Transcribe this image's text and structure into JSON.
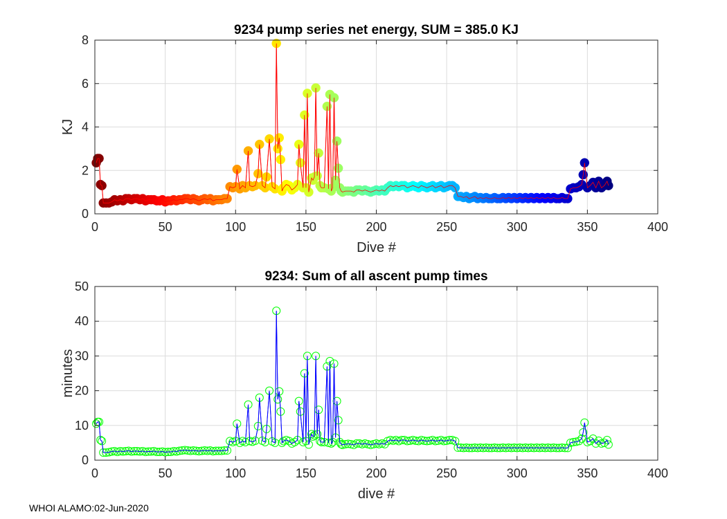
{
  "footer": "WHOI ALAMO:02-Jun-2020",
  "colors": {
    "axis": "#262626",
    "grid": "#dcdcdc",
    "energy_line": "#ff0000",
    "pump_line": "#0000ff",
    "pump_marker": "#00ff00"
  },
  "chart_data": [
    {
      "type": "scatter",
      "title": "9234 pump series net energy, SUM = 385.0 KJ",
      "xlabel": "Dive #",
      "ylabel": "KJ",
      "xlim": [
        0,
        400
      ],
      "ylim": [
        0,
        8
      ],
      "xticks": [
        0,
        50,
        100,
        150,
        200,
        250,
        300,
        350,
        400
      ],
      "yticks": [
        0,
        2,
        4,
        6,
        8
      ],
      "grid": true,
      "marker_colormap": "jet, reversed by dive number (dark red at dive 1 to dark blue at dive 365)",
      "line_color": "red",
      "x": [
        1,
        2,
        3,
        4,
        5,
        6,
        8,
        10,
        12,
        14,
        16,
        18,
        20,
        22,
        24,
        26,
        28,
        30,
        32,
        34,
        36,
        38,
        40,
        42,
        44,
        46,
        48,
        50,
        52,
        54,
        56,
        58,
        60,
        62,
        64,
        66,
        68,
        70,
        72,
        74,
        76,
        78,
        80,
        82,
        84,
        86,
        88,
        90,
        92,
        94,
        96,
        98,
        100,
        101,
        103,
        105,
        107,
        109,
        110,
        112,
        114,
        116,
        117,
        119,
        121,
        122,
        124,
        126,
        128,
        129,
        130,
        131,
        132,
        133,
        134,
        136,
        138,
        140,
        142,
        144,
        145,
        146,
        148,
        149,
        150,
        151,
        152,
        154,
        155,
        156,
        157,
        158,
        159,
        160,
        161,
        163,
        165,
        166,
        167,
        168,
        169,
        170,
        171,
        172,
        173,
        174,
        175,
        176,
        178,
        180,
        182,
        184,
        186,
        188,
        190,
        192,
        194,
        196,
        198,
        200,
        202,
        204,
        206,
        208,
        210,
        212,
        214,
        216,
        218,
        220,
        222,
        224,
        226,
        228,
        230,
        232,
        234,
        236,
        238,
        240,
        242,
        244,
        246,
        248,
        250,
        252,
        254,
        256,
        258,
        260,
        262,
        264,
        266,
        268,
        270,
        272,
        274,
        276,
        278,
        280,
        282,
        284,
        286,
        288,
        290,
        292,
        294,
        296,
        298,
        300,
        302,
        304,
        306,
        308,
        310,
        312,
        314,
        316,
        318,
        320,
        322,
        324,
        326,
        328,
        330,
        332,
        334,
        336,
        338,
        340,
        342,
        344,
        346,
        347,
        348,
        350,
        352,
        354,
        356,
        358,
        360,
        362,
        364,
        365
      ],
      "y": [
        2.35,
        2.55,
        2.55,
        1.35,
        1.3,
        0.5,
        0.5,
        0.5,
        0.55,
        0.65,
        0.6,
        0.65,
        0.6,
        0.7,
        0.7,
        0.65,
        0.7,
        0.7,
        0.65,
        0.7,
        0.6,
        0.65,
        0.65,
        0.65,
        0.6,
        0.6,
        0.65,
        0.55,
        0.6,
        0.6,
        0.65,
        0.6,
        0.65,
        0.65,
        0.7,
        0.7,
        0.65,
        0.7,
        0.65,
        0.6,
        0.65,
        0.7,
        0.65,
        0.7,
        0.6,
        0.65,
        0.65,
        0.65,
        0.7,
        0.7,
        1.25,
        1.2,
        1.25,
        2.05,
        1.15,
        1.3,
        1.2,
        2.9,
        1.3,
        1.25,
        1.3,
        1.85,
        3.2,
        1.3,
        1.2,
        1.7,
        3.45,
        1.25,
        1.15,
        7.85,
        3.0,
        3.5,
        2.5,
        1.05,
        1.2,
        1.35,
        1.3,
        1.1,
        1.2,
        1.35,
        3.2,
        2.35,
        1.2,
        4.55,
        1.2,
        5.55,
        1.0,
        1.65,
        1.55,
        1.7,
        5.8,
        1.75,
        2.8,
        1.3,
        1.2,
        1.2,
        4.95,
        1.15,
        5.5,
        1.05,
        1.2,
        5.35,
        1.55,
        3.35,
        2.1,
        1.2,
        1.05,
        1.0,
        1.05,
        1.05,
        1.05,
        1.0,
        1.1,
        1.1,
        1.05,
        1.1,
        1.05,
        1.0,
        1.05,
        1.1,
        1.05,
        1.1,
        1.05,
        1.2,
        1.3,
        1.25,
        1.3,
        1.25,
        1.3,
        1.3,
        1.2,
        1.25,
        1.3,
        1.25,
        1.2,
        1.3,
        1.25,
        1.2,
        1.25,
        1.3,
        1.2,
        1.25,
        1.3,
        1.2,
        1.25,
        1.3,
        1.3,
        1.2,
        0.8,
        0.8,
        0.75,
        0.8,
        0.7,
        0.75,
        0.8,
        0.7,
        0.75,
        0.7,
        0.75,
        0.7,
        0.7,
        0.75,
        0.7,
        0.7,
        0.75,
        0.7,
        0.75,
        0.7,
        0.75,
        0.7,
        0.75,
        0.7,
        0.75,
        0.7,
        0.75,
        0.7,
        0.75,
        0.7,
        0.75,
        0.7,
        0.75,
        0.7,
        0.75,
        0.7,
        0.7,
        0.75,
        0.7,
        0.7,
        1.15,
        1.2,
        1.2,
        1.25,
        1.35,
        1.8,
        2.35,
        1.2,
        1.3,
        1.45,
        1.2,
        1.5,
        1.2,
        1.3,
        1.5,
        1.3
      ]
    },
    {
      "type": "line",
      "title": "9234: Sum of all ascent pump times",
      "xlabel": "dive #",
      "ylabel": "minutes",
      "xlim": [
        0,
        400
      ],
      "ylim": [
        0,
        50
      ],
      "xticks": [
        0,
        50,
        100,
        150,
        200,
        250,
        300,
        350,
        400
      ],
      "yticks": [
        0,
        10,
        20,
        30,
        40,
        50
      ],
      "grid": true,
      "line_color": "blue",
      "marker": "open circle, green",
      "x": [
        1,
        2,
        3,
        4,
        5,
        6,
        8,
        10,
        12,
        14,
        16,
        18,
        20,
        22,
        24,
        26,
        28,
        30,
        32,
        34,
        36,
        38,
        40,
        42,
        44,
        46,
        48,
        50,
        52,
        54,
        56,
        58,
        60,
        62,
        64,
        66,
        68,
        70,
        72,
        74,
        76,
        78,
        80,
        82,
        84,
        86,
        88,
        90,
        92,
        94,
        96,
        98,
        100,
        101,
        103,
        105,
        107,
        109,
        110,
        112,
        114,
        116,
        117,
        119,
        121,
        122,
        124,
        126,
        128,
        129,
        130,
        131,
        132,
        133,
        134,
        136,
        138,
        140,
        142,
        144,
        145,
        146,
        148,
        149,
        150,
        151,
        152,
        154,
        155,
        156,
        157,
        158,
        159,
        160,
        161,
        163,
        165,
        166,
        167,
        168,
        169,
        170,
        171,
        172,
        173,
        174,
        175,
        176,
        178,
        180,
        182,
        184,
        186,
        188,
        190,
        192,
        194,
        196,
        198,
        200,
        202,
        204,
        206,
        208,
        210,
        212,
        214,
        216,
        218,
        220,
        222,
        224,
        226,
        228,
        230,
        232,
        234,
        236,
        238,
        240,
        242,
        244,
        246,
        248,
        250,
        252,
        254,
        256,
        258,
        260,
        262,
        264,
        266,
        268,
        270,
        272,
        274,
        276,
        278,
        280,
        282,
        284,
        286,
        288,
        290,
        292,
        294,
        296,
        298,
        300,
        302,
        304,
        306,
        308,
        310,
        312,
        314,
        316,
        318,
        320,
        322,
        324,
        326,
        328,
        330,
        332,
        334,
        336,
        338,
        340,
        342,
        344,
        346,
        347,
        348,
        350,
        352,
        354,
        356,
        358,
        360,
        362,
        364,
        365
      ],
      "y": [
        10.5,
        11.0,
        11.0,
        5.8,
        5.5,
        2.2,
        2.2,
        2.3,
        2.5,
        2.6,
        2.4,
        2.6,
        2.5,
        2.6,
        2.7,
        2.5,
        2.6,
        2.6,
        2.5,
        2.6,
        2.4,
        2.5,
        2.5,
        2.6,
        2.4,
        2.4,
        2.5,
        2.3,
        2.4,
        2.4,
        2.6,
        2.5,
        2.7,
        2.8,
        2.9,
        2.8,
        2.7,
        2.8,
        2.7,
        2.6,
        2.7,
        2.8,
        2.7,
        2.8,
        2.6,
        2.7,
        2.7,
        2.7,
        2.8,
        2.8,
        5.5,
        5.2,
        5.5,
        10.5,
        5.0,
        5.5,
        5.2,
        16.0,
        5.5,
        5.3,
        5.6,
        9.8,
        18.0,
        5.6,
        5.2,
        9.0,
        20.0,
        5.4,
        5.0,
        43.0,
        17.5,
        19.8,
        14.0,
        5.0,
        5.5,
        5.8,
        5.5,
        4.8,
        5.2,
        5.8,
        17.0,
        14.0,
        5.2,
        25.0,
        5.5,
        30.0,
        4.5,
        7.5,
        6.8,
        7.2,
        30.0,
        7.5,
        14.5,
        5.5,
        5.2,
        5.2,
        27.0,
        5.0,
        28.5,
        4.8,
        5.2,
        27.8,
        6.5,
        17.0,
        11.5,
        5.2,
        4.6,
        4.4,
        4.6,
        4.7,
        4.6,
        4.4,
        4.8,
        4.8,
        4.6,
        4.8,
        4.6,
        4.4,
        4.6,
        4.8,
        4.6,
        4.8,
        4.6,
        5.5,
        5.8,
        5.6,
        5.8,
        5.5,
        5.8,
        5.8,
        5.5,
        5.6,
        5.8,
        5.6,
        5.5,
        5.8,
        5.6,
        5.5,
        5.6,
        5.8,
        5.5,
        5.6,
        5.8,
        5.5,
        5.6,
        5.8,
        5.8,
        5.5,
        3.6,
        3.6,
        3.5,
        3.6,
        3.5,
        3.5,
        3.6,
        3.5,
        3.6,
        3.5,
        3.6,
        3.5,
        3.5,
        3.6,
        3.5,
        3.5,
        3.6,
        3.5,
        3.6,
        3.5,
        3.6,
        3.5,
        3.6,
        3.5,
        3.6,
        3.5,
        3.6,
        3.5,
        3.6,
        3.5,
        3.6,
        3.5,
        3.6,
        3.5,
        3.6,
        3.5,
        3.5,
        3.6,
        3.5,
        3.5,
        5.0,
        5.2,
        5.3,
        5.5,
        6.2,
        8.0,
        10.8,
        5.2,
        5.5,
        6.2,
        4.8,
        5.6,
        4.8,
        5.0,
        5.8,
        4.5
      ]
    }
  ]
}
